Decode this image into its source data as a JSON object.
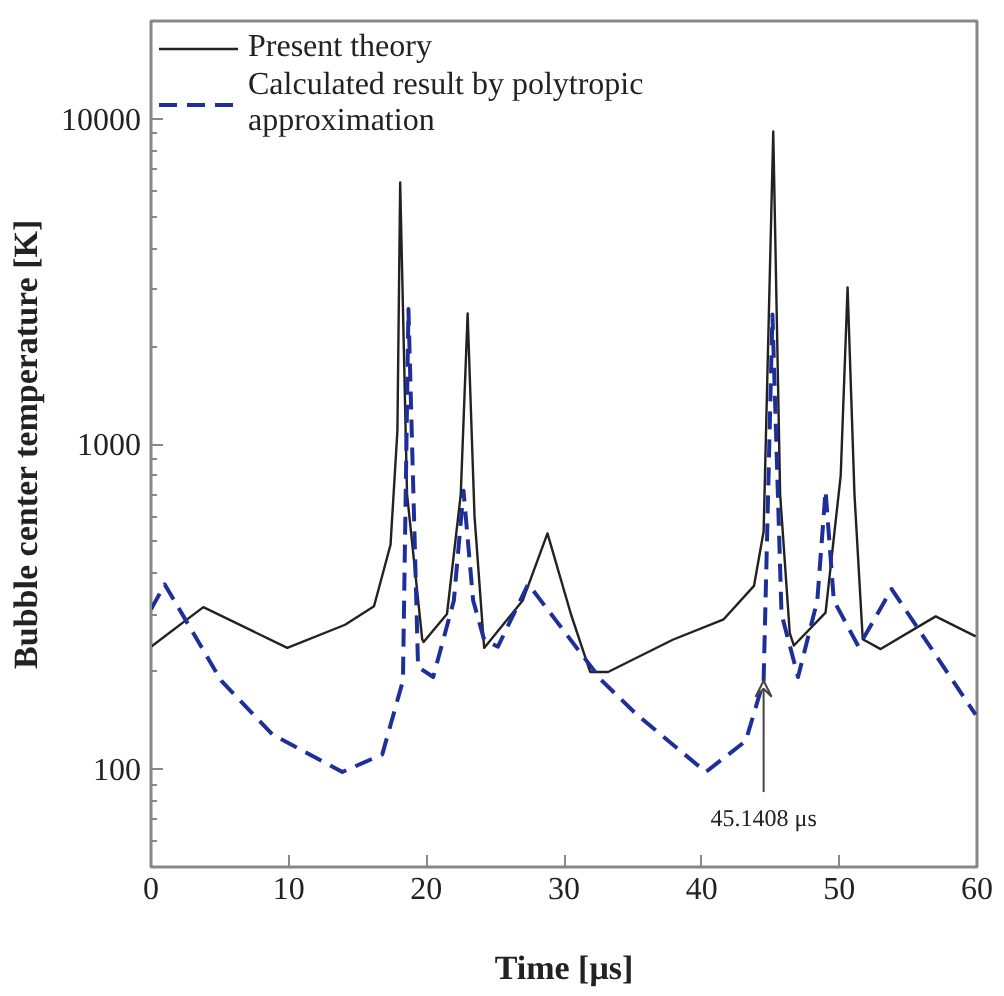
{
  "chart_data": {
    "type": "line",
    "xlabel": "Time [μs]",
    "ylabel": "Bubble center temperature [K]",
    "xlim": [
      0,
      60
    ],
    "ylim": [
      50,
      20000
    ],
    "xticks": [
      0,
      10,
      20,
      30,
      40,
      50,
      60
    ],
    "yticks": [
      100,
      1000,
      10000
    ],
    "log": "y",
    "grid": false,
    "legend": "top left",
    "series": [
      {
        "name": "Present theory",
        "color": "#222222",
        "line_style": "solid",
        "x": [
          0,
          3.8,
          9.9,
          14.1,
          16.2,
          17.4,
          17.9,
          18.1,
          18.6,
          19.7,
          19.8,
          21.5,
          22.5,
          23.0,
          23.5,
          24.2,
          27.0,
          28.8,
          30.5,
          31.9,
          33.2,
          37.9,
          41.6,
          43.8,
          44.5,
          45.2,
          45.7,
          46.4,
          46.7,
          49.0,
          50.1,
          50.6,
          51.1,
          51.7,
          53.0,
          57.0,
          59.9
        ],
        "values": [
          238,
          315,
          236,
          278,
          317,
          490,
          1100,
          6370,
          700,
          251,
          246,
          300,
          700,
          2520,
          600,
          236,
          330,
          531,
          300,
          199,
          199,
          250,
          289,
          366,
          538,
          9140,
          700,
          262,
          240,
          303,
          800,
          3030,
          700,
          251,
          234,
          295,
          256
        ]
      },
      {
        "name": "Calculated result by polytropic approximation",
        "color": "#1f2f9a",
        "line_style": "dashed",
        "x": [
          0,
          1.0,
          5.1,
          8.8,
          13.9,
          16.8,
          18.3,
          18.7,
          19.4,
          20.5,
          22.0,
          22.7,
          23.4,
          24.2,
          25.2,
          27.4,
          32.7,
          35.3,
          40.3,
          43.2,
          44.5,
          45.1408,
          45.8,
          47.0,
          48.4,
          49.0,
          49.6,
          51.4,
          53.8,
          59.9
        ],
        "values": [
          310,
          370,
          187,
          128,
          98,
          111,
          187,
          2600,
          206,
          192,
          330,
          718,
          330,
          250,
          238,
          371,
          188,
          147,
          98,
          122,
          187,
          2500,
          300,
          192,
          330,
          718,
          330,
          238,
          358,
          147
        ]
      }
    ],
    "annotations": [
      {
        "text": "45.1408 μs",
        "x": 44.5,
        "y": 187
      }
    ]
  }
}
